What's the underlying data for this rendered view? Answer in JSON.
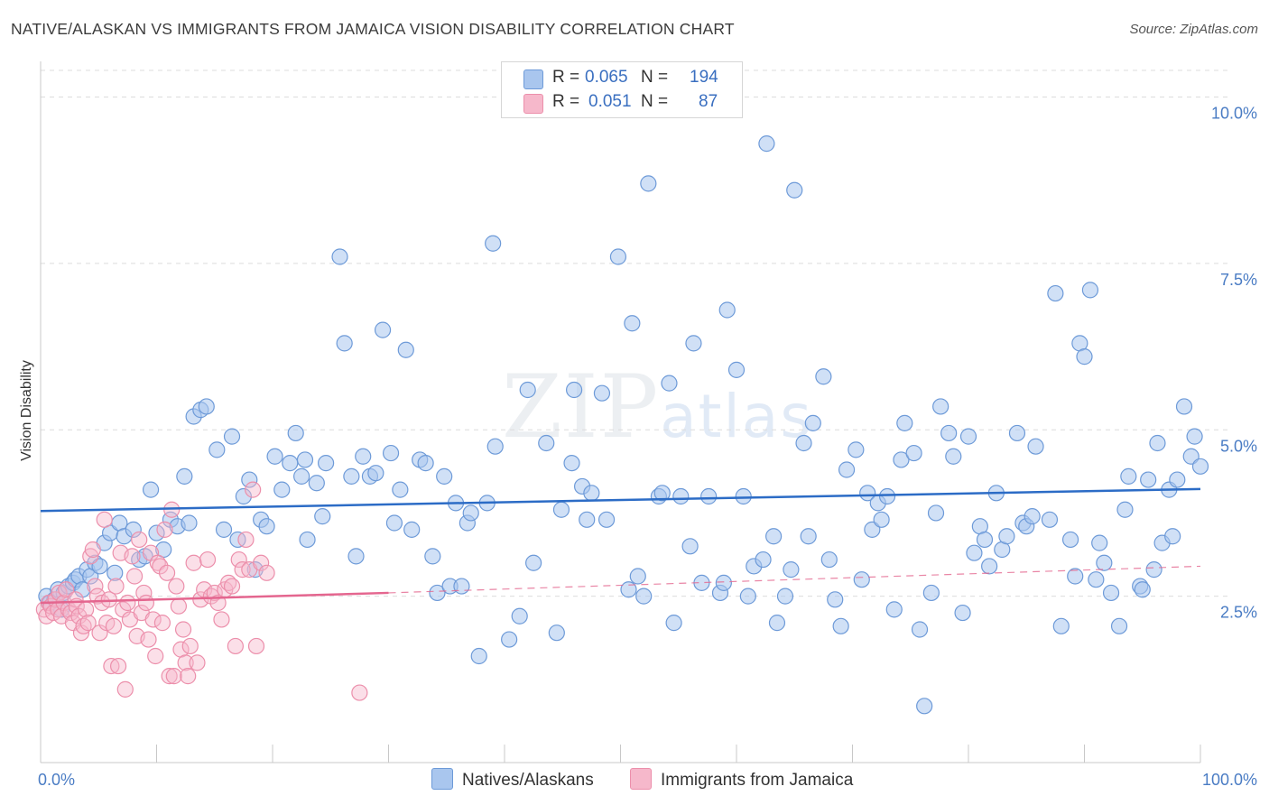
{
  "title": "NATIVE/ALASKAN VS IMMIGRANTS FROM JAMAICA VISION DISABILITY CORRELATION CHART",
  "source": "Source: ZipAtlas.com",
  "watermark": {
    "left": "ZIP",
    "right": "atlas"
  },
  "legend": {
    "r_label": "R =",
    "n_label": "N =",
    "rows": [
      {
        "r": "0.065",
        "n": "194",
        "color": "#a9c6ee"
      },
      {
        "r": "0.051",
        "n": "87",
        "color": "#f6b8cb"
      }
    ]
  },
  "colors": {
    "blue_fill": "#a9c6ee",
    "blue_stroke": "#6d9ad8",
    "blue_line": "#2c6cc6",
    "pink_fill": "#f6b8cb",
    "pink_stroke": "#ec8fab",
    "pink_line": "#e4668f",
    "tick_text": "#4a7cc4",
    "grid": "#dcdcdc"
  },
  "chart_data": {
    "type": "scatter",
    "title": "NATIVE/ALASKAN VS IMMIGRANTS FROM JAMAICA VISION DISABILITY CORRELATION CHART",
    "xlabel": "",
    "ylabel": "Vision Disability",
    "xlim": [
      0,
      100
    ],
    "ylim": [
      0,
      10.4
    ],
    "x_tick_labels": [
      "0.0%",
      "100.0%"
    ],
    "y_ticks": [
      2.5,
      5.0,
      7.5,
      10.0
    ],
    "y_tick_labels": [
      "2.5%",
      "5.0%",
      "7.5%",
      "10.0%"
    ],
    "grid": true,
    "legend_position": "top-center",
    "series": [
      {
        "name": "Natives/Alaskans",
        "r": 0.065,
        "n": 194,
        "trend": {
          "x": [
            0,
            100
          ],
          "y": [
            3.78,
            4.11
          ],
          "dashed_from": null
        },
        "points": [
          [
            0.5,
            2.5
          ],
          [
            0.8,
            2.4
          ],
          [
            1.2,
            2.45
          ],
          [
            1.5,
            2.6
          ],
          [
            1.8,
            2.3
          ],
          [
            2.0,
            2.55
          ],
          [
            2.4,
            2.65
          ],
          [
            2.8,
            2.7
          ],
          [
            3.0,
            2.75
          ],
          [
            3.3,
            2.8
          ],
          [
            3.6,
            2.6
          ],
          [
            4.0,
            2.9
          ],
          [
            4.3,
            2.8
          ],
          [
            4.7,
            3.0
          ],
          [
            5.1,
            2.95
          ],
          [
            5.5,
            3.3
          ],
          [
            6.0,
            3.45
          ],
          [
            6.4,
            2.85
          ],
          [
            6.8,
            3.6
          ],
          [
            7.2,
            3.4
          ],
          [
            8.0,
            3.5
          ],
          [
            8.5,
            3.05
          ],
          [
            9.0,
            3.1
          ],
          [
            9.5,
            4.1
          ],
          [
            10.0,
            3.45
          ],
          [
            10.6,
            3.2
          ],
          [
            11.2,
            3.65
          ],
          [
            11.8,
            3.55
          ],
          [
            12.4,
            4.3
          ],
          [
            12.8,
            3.6
          ],
          [
            13.2,
            5.2
          ],
          [
            13.8,
            5.3
          ],
          [
            14.3,
            5.35
          ],
          [
            15.2,
            4.7
          ],
          [
            15.8,
            3.5
          ],
          [
            16.5,
            4.9
          ],
          [
            17.0,
            3.35
          ],
          [
            17.5,
            4.0
          ],
          [
            18.0,
            4.25
          ],
          [
            18.5,
            2.9
          ],
          [
            19.0,
            3.65
          ],
          [
            19.5,
            3.55
          ],
          [
            20.2,
            4.6
          ],
          [
            20.8,
            4.1
          ],
          [
            21.5,
            4.5
          ],
          [
            22.0,
            4.95
          ],
          [
            22.5,
            4.3
          ],
          [
            23.0,
            3.35
          ],
          [
            23.8,
            4.2
          ],
          [
            24.3,
            3.7
          ],
          [
            24.6,
            4.5
          ],
          [
            25.8,
            7.6
          ],
          [
            26.2,
            6.3
          ],
          [
            26.8,
            4.3
          ],
          [
            27.2,
            3.1
          ],
          [
            27.8,
            4.6
          ],
          [
            28.4,
            4.3
          ],
          [
            28.9,
            4.35
          ],
          [
            29.5,
            6.5
          ],
          [
            30.2,
            4.65
          ],
          [
            30.5,
            3.6
          ],
          [
            31.0,
            4.1
          ],
          [
            31.5,
            6.2
          ],
          [
            32.0,
            3.5
          ],
          [
            32.7,
            4.55
          ],
          [
            33.2,
            4.5
          ],
          [
            33.8,
            3.1
          ],
          [
            34.2,
            2.55
          ],
          [
            34.8,
            4.3
          ],
          [
            35.3,
            2.65
          ],
          [
            35.8,
            3.9
          ],
          [
            36.3,
            2.65
          ],
          [
            36.8,
            3.6
          ],
          [
            37.1,
            3.75
          ],
          [
            37.8,
            1.6
          ],
          [
            38.5,
            3.9
          ],
          [
            39.0,
            7.8
          ],
          [
            39.2,
            4.75
          ],
          [
            40.4,
            1.85
          ],
          [
            41.3,
            2.2
          ],
          [
            42.0,
            5.6
          ],
          [
            42.5,
            3.0
          ],
          [
            43.6,
            4.8
          ],
          [
            44.5,
            1.95
          ],
          [
            44.9,
            3.8
          ],
          [
            45.8,
            4.5
          ],
          [
            46.0,
            5.6
          ],
          [
            46.7,
            4.15
          ],
          [
            47.1,
            3.65
          ],
          [
            47.5,
            4.05
          ],
          [
            48.4,
            5.55
          ],
          [
            48.8,
            3.65
          ],
          [
            49.8,
            7.6
          ],
          [
            50.7,
            2.6
          ],
          [
            51.0,
            6.6
          ],
          [
            51.5,
            2.8
          ],
          [
            52.0,
            2.5
          ],
          [
            52.4,
            8.7
          ],
          [
            53.3,
            4.0
          ],
          [
            53.6,
            4.05
          ],
          [
            54.2,
            5.7
          ],
          [
            54.6,
            2.1
          ],
          [
            55.2,
            4.0
          ],
          [
            56.0,
            3.25
          ],
          [
            56.3,
            6.3
          ],
          [
            57.0,
            2.7
          ],
          [
            57.6,
            4.0
          ],
          [
            58.6,
            2.55
          ],
          [
            58.9,
            2.7
          ],
          [
            59.2,
            6.8
          ],
          [
            60.0,
            5.9
          ],
          [
            60.6,
            4.0
          ],
          [
            61.0,
            2.5
          ],
          [
            61.5,
            2.95
          ],
          [
            62.3,
            3.05
          ],
          [
            62.6,
            9.3
          ],
          [
            63.2,
            3.4
          ],
          [
            63.5,
            2.1
          ],
          [
            64.2,
            2.5
          ],
          [
            64.7,
            2.9
          ],
          [
            65.0,
            8.6
          ],
          [
            65.8,
            4.8
          ],
          [
            66.2,
            3.4
          ],
          [
            66.6,
            5.1
          ],
          [
            67.5,
            5.8
          ],
          [
            68.0,
            3.05
          ],
          [
            68.5,
            2.45
          ],
          [
            69.0,
            2.05
          ],
          [
            69.5,
            4.4
          ],
          [
            70.3,
            4.7
          ],
          [
            70.8,
            2.75
          ],
          [
            71.3,
            4.05
          ],
          [
            71.7,
            3.5
          ],
          [
            72.2,
            3.9
          ],
          [
            72.5,
            3.65
          ],
          [
            73.0,
            4.0
          ],
          [
            73.6,
            2.3
          ],
          [
            74.2,
            4.55
          ],
          [
            74.5,
            5.1
          ],
          [
            75.3,
            4.65
          ],
          [
            75.8,
            2.0
          ],
          [
            76.2,
            0.85
          ],
          [
            76.8,
            2.55
          ],
          [
            77.2,
            3.75
          ],
          [
            77.6,
            5.35
          ],
          [
            78.3,
            4.95
          ],
          [
            78.7,
            4.6
          ],
          [
            79.5,
            2.25
          ],
          [
            80.0,
            4.9
          ],
          [
            80.5,
            3.15
          ],
          [
            81.0,
            3.55
          ],
          [
            81.4,
            3.35
          ],
          [
            81.8,
            2.95
          ],
          [
            82.4,
            4.05
          ],
          [
            82.9,
            3.2
          ],
          [
            83.3,
            3.4
          ],
          [
            84.2,
            4.95
          ],
          [
            84.7,
            3.6
          ],
          [
            85.0,
            3.55
          ],
          [
            85.5,
            3.7
          ],
          [
            85.8,
            4.75
          ],
          [
            87.0,
            3.65
          ],
          [
            87.5,
            7.05
          ],
          [
            88.0,
            2.05
          ],
          [
            88.8,
            3.35
          ],
          [
            89.2,
            2.8
          ],
          [
            89.6,
            6.3
          ],
          [
            90.0,
            6.1
          ],
          [
            90.5,
            7.1
          ],
          [
            91.0,
            2.75
          ],
          [
            91.3,
            3.3
          ],
          [
            91.7,
            3.0
          ],
          [
            92.3,
            2.55
          ],
          [
            93.0,
            2.05
          ],
          [
            93.5,
            3.8
          ],
          [
            93.8,
            4.3
          ],
          [
            94.8,
            2.65
          ],
          [
            95.0,
            2.6
          ],
          [
            95.5,
            4.25
          ],
          [
            96.0,
            2.9
          ],
          [
            96.3,
            4.8
          ],
          [
            96.7,
            3.3
          ],
          [
            97.3,
            4.1
          ],
          [
            97.6,
            3.4
          ],
          [
            98.0,
            4.25
          ],
          [
            98.6,
            5.35
          ],
          [
            99.2,
            4.6
          ],
          [
            99.5,
            4.9
          ],
          [
            100.0,
            4.45
          ],
          [
            22.8,
            4.55
          ]
        ]
      },
      {
        "name": "Immigrants from Jamaica",
        "r": 0.051,
        "n": 87,
        "trend": {
          "x": [
            0,
            30,
            100
          ],
          "y": [
            2.4,
            2.55,
            2.95
          ],
          "dashed_from": 30
        },
        "points": [
          [
            0.3,
            2.3
          ],
          [
            0.5,
            2.2
          ],
          [
            0.7,
            2.4
          ],
          [
            0.9,
            2.35
          ],
          [
            1.1,
            2.25
          ],
          [
            1.3,
            2.45
          ],
          [
            1.5,
            2.3
          ],
          [
            1.6,
            2.55
          ],
          [
            1.8,
            2.2
          ],
          [
            2.0,
            2.4
          ],
          [
            2.2,
            2.6
          ],
          [
            2.4,
            2.3
          ],
          [
            2.6,
            2.25
          ],
          [
            2.8,
            2.1
          ],
          [
            3.0,
            2.45
          ],
          [
            3.1,
            2.35
          ],
          [
            3.3,
            2.2
          ],
          [
            3.5,
            1.95
          ],
          [
            3.7,
            2.05
          ],
          [
            3.9,
            2.3
          ],
          [
            4.1,
            2.1
          ],
          [
            4.3,
            3.1
          ],
          [
            4.5,
            3.2
          ],
          [
            4.7,
            2.65
          ],
          [
            4.9,
            2.5
          ],
          [
            5.1,
            1.95
          ],
          [
            5.3,
            2.4
          ],
          [
            5.5,
            3.65
          ],
          [
            5.7,
            2.1
          ],
          [
            5.9,
            2.45
          ],
          [
            6.1,
            1.45
          ],
          [
            6.3,
            2.05
          ],
          [
            6.5,
            2.65
          ],
          [
            6.7,
            1.45
          ],
          [
            6.9,
            3.15
          ],
          [
            7.1,
            2.3
          ],
          [
            7.3,
            1.1
          ],
          [
            7.5,
            2.4
          ],
          [
            7.7,
            2.15
          ],
          [
            7.9,
            3.1
          ],
          [
            8.1,
            2.8
          ],
          [
            8.3,
            1.9
          ],
          [
            8.5,
            3.35
          ],
          [
            8.7,
            2.25
          ],
          [
            8.9,
            2.55
          ],
          [
            9.1,
            2.4
          ],
          [
            9.3,
            1.85
          ],
          [
            9.5,
            3.15
          ],
          [
            9.7,
            2.15
          ],
          [
            9.9,
            1.6
          ],
          [
            10.1,
            3.0
          ],
          [
            10.3,
            2.95
          ],
          [
            10.5,
            2.1
          ],
          [
            10.7,
            3.5
          ],
          [
            10.9,
            2.85
          ],
          [
            11.1,
            1.3
          ],
          [
            11.3,
            3.8
          ],
          [
            11.5,
            1.3
          ],
          [
            11.7,
            2.65
          ],
          [
            11.9,
            2.35
          ],
          [
            12.1,
            1.7
          ],
          [
            12.3,
            2.0
          ],
          [
            12.5,
            1.5
          ],
          [
            12.7,
            1.3
          ],
          [
            12.9,
            1.75
          ],
          [
            13.2,
            3.0
          ],
          [
            13.5,
            1.5
          ],
          [
            13.8,
            2.45
          ],
          [
            14.1,
            2.6
          ],
          [
            14.4,
            3.05
          ],
          [
            14.7,
            2.5
          ],
          [
            15.0,
            2.55
          ],
          [
            15.3,
            2.4
          ],
          [
            15.6,
            2.15
          ],
          [
            15.9,
            2.6
          ],
          [
            16.2,
            2.7
          ],
          [
            16.5,
            2.65
          ],
          [
            16.8,
            1.75
          ],
          [
            17.1,
            3.05
          ],
          [
            17.4,
            2.9
          ],
          [
            17.7,
            3.35
          ],
          [
            18.0,
            2.9
          ],
          [
            18.3,
            4.1
          ],
          [
            18.6,
            1.75
          ],
          [
            19.0,
            3.0
          ],
          [
            19.5,
            2.85
          ],
          [
            27.5,
            1.05
          ]
        ]
      }
    ]
  },
  "bottom_legend": [
    {
      "label": "Natives/Alaskans"
    },
    {
      "label": "Immigrants from Jamaica"
    }
  ]
}
